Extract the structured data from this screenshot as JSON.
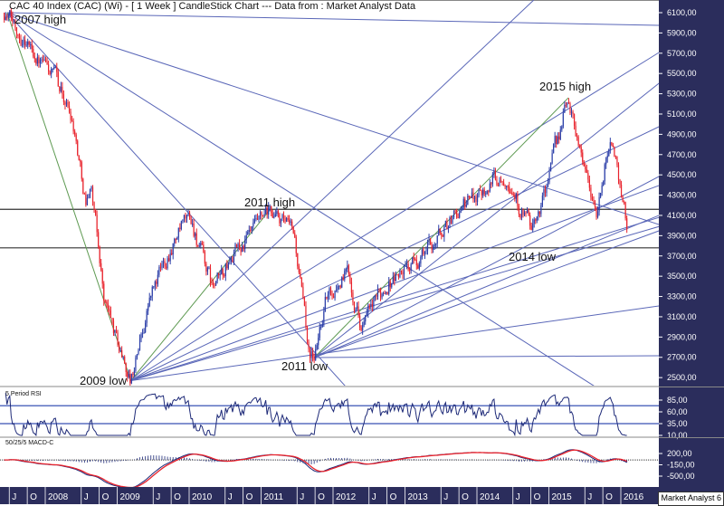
{
  "header": {
    "title": "CAC 40 Index (CAC) (Wi) - [ 1 Week ] CandleStick Chart --- Data from : Market Analyst Data"
  },
  "brand": "Market Analyst 6",
  "colors": {
    "up": "#2b3ea8",
    "down": "#e8222b",
    "fan": "#5a67b8",
    "fan_green": "#5e9a52",
    "axis_bg": "#2b2d5c",
    "hline": "#333333",
    "macd_signal": "#e8222b",
    "macd_line": "#1e2a78"
  },
  "annotations": [
    {
      "text": "2007 high"
    },
    {
      "text": "2009 low"
    },
    {
      "text": "2011 high"
    },
    {
      "text": "2011 low"
    },
    {
      "text": "2015 high"
    },
    {
      "text": "2014 low"
    }
  ],
  "chart_data": [
    {
      "type": "candlestick",
      "title": "CAC 40 Index (CAC) (Wi) - [ 1 Week ] CandleStick Chart",
      "ylim": [
        2500,
        6200
      ],
      "xlim": [
        2007.36,
        2016.53
      ],
      "yticks": [
        6100,
        5900,
        5700,
        5500,
        5300,
        5100,
        4900,
        4700,
        4500,
        4300,
        4100,
        3900,
        3700,
        3500,
        3300,
        3100,
        2900,
        2700,
        2500
      ],
      "ytick_labels": [
        "6100,00",
        "5900,00",
        "5700,00",
        "5500,00",
        "5300,00",
        "5100,00",
        "4900,00",
        "4700,00",
        "4500,00",
        "4300,00",
        "4100,00",
        "3900,00",
        "3700,00",
        "3500,00",
        "3300,00",
        "3100,00",
        "2900,00",
        "2700,00",
        "2500,00"
      ],
      "price_path": [
        [
          2007.43,
          6100
        ],
        [
          2007.75,
          5820
        ],
        [
          2007.94,
          5600
        ],
        [
          2008.13,
          5470
        ],
        [
          2008.38,
          5065
        ],
        [
          2008.57,
          4215
        ],
        [
          2008.63,
          4440
        ],
        [
          2008.82,
          3280
        ],
        [
          2009.01,
          2830
        ],
        [
          2009.19,
          2470
        ],
        [
          2009.45,
          3280
        ],
        [
          2009.76,
          3815
        ],
        [
          2010.01,
          4080
        ],
        [
          2010.33,
          3370
        ],
        [
          2010.64,
          3725
        ],
        [
          2011.14,
          4130
        ],
        [
          2011.46,
          3900
        ],
        [
          2011.65,
          2830
        ],
        [
          2011.74,
          2700
        ],
        [
          2011.9,
          3280
        ],
        [
          2012.21,
          3545
        ],
        [
          2012.4,
          3010
        ],
        [
          2012.78,
          3460
        ],
        [
          2013.16,
          3640
        ],
        [
          2013.66,
          4080
        ],
        [
          2014.16,
          4440
        ],
        [
          2014.42,
          4530
        ],
        [
          2014.6,
          4170
        ],
        [
          2014.79,
          3950
        ],
        [
          2014.98,
          4440
        ],
        [
          2015.27,
          5260
        ],
        [
          2015.55,
          4440
        ],
        [
          2015.67,
          4080
        ],
        [
          2015.86,
          4930
        ],
        [
          2016.05,
          4170
        ],
        [
          2016.1,
          3885
        ]
      ],
      "horizontal_lines": [
        4160,
        3780
      ],
      "fan_lines": [
        {
          "from": [
            2007.47,
            6100
          ],
          "to": [
            2016.53,
            5975
          ],
          "color": "fan"
        },
        {
          "from": [
            2007.47,
            6100
          ],
          "to": [
            2016.53,
            4010
          ],
          "color": "fan"
        },
        {
          "from": [
            2007.47,
            6100
          ],
          "to": [
            2015.7,
            2385
          ],
          "color": "fan"
        },
        {
          "from": [
            2007.47,
            6100
          ],
          "to": [
            2012.21,
            2385
          ],
          "color": "fan"
        },
        {
          "from": [
            2007.47,
            6100
          ],
          "to": [
            2009.19,
            2470
          ],
          "color": "fan_green"
        },
        {
          "from": [
            2009.19,
            2470
          ],
          "to": [
            2011.12,
            4153
          ],
          "color": "fan_green"
        },
        {
          "from": [
            2009.19,
            2470
          ],
          "to": [
            2014.79,
            6225
          ],
          "color": "fan"
        },
        {
          "from": [
            2009.19,
            2470
          ],
          "to": [
            2016.53,
            5707
          ],
          "color": "fan"
        },
        {
          "from": [
            2009.19,
            2470
          ],
          "to": [
            2016.53,
            4975
          ],
          "color": "fan"
        },
        {
          "from": [
            2009.19,
            2470
          ],
          "to": [
            2016.53,
            4395
          ],
          "color": "fan"
        },
        {
          "from": [
            2009.19,
            2470
          ],
          "to": [
            2016.53,
            4080
          ],
          "color": "fan"
        },
        {
          "from": [
            2009.19,
            2470
          ],
          "to": [
            2016.53,
            3990
          ],
          "color": "fan"
        },
        {
          "from": [
            2009.19,
            2470
          ],
          "to": [
            2016.53,
            3207
          ],
          "color": "fan"
        },
        {
          "from": [
            2011.74,
            2698
          ],
          "to": [
            2015.27,
            5260
          ],
          "color": "fan_green"
        },
        {
          "from": [
            2011.74,
            2698
          ],
          "to": [
            2016.53,
            5403
          ],
          "color": "fan"
        },
        {
          "from": [
            2011.74,
            2698
          ],
          "to": [
            2016.53,
            4484
          ],
          "color": "fan"
        },
        {
          "from": [
            2011.74,
            2698
          ],
          "to": [
            2016.53,
            4100
          ],
          "color": "fan"
        },
        {
          "from": [
            2011.74,
            2698
          ],
          "to": [
            2016.53,
            3948
          ],
          "color": "fan"
        },
        {
          "from": [
            2011.74,
            2698
          ],
          "to": [
            2016.53,
            2716
          ],
          "color": "fan"
        }
      ]
    },
    {
      "type": "line",
      "title": "5 Period RSI",
      "period": 5,
      "ylim": [
        5,
        95
      ],
      "yticks": [
        85,
        60,
        35,
        10
      ],
      "ytick_labels": [
        "85,00",
        "60,00",
        "35,00",
        "10,00"
      ],
      "bands": [
        73,
        35
      ]
    },
    {
      "type": "line",
      "title": "50/25/5 MACD-C",
      "ylim": [
        -620,
        420
      ],
      "yticks": [
        200,
        -150,
        -500
      ],
      "ytick_labels": [
        "200,00",
        "-150,00",
        "-500,00"
      ]
    }
  ],
  "time_axis": [
    {
      "label": "J",
      "year": 2007.5
    },
    {
      "label": "O",
      "year": 2007.75
    },
    {
      "label": "2008",
      "year": 2008
    },
    {
      "label": "J",
      "year": 2008.5
    },
    {
      "label": "O",
      "year": 2008.75
    },
    {
      "label": "2009",
      "year": 2009
    },
    {
      "label": "J",
      "year": 2009.5
    },
    {
      "label": "O",
      "year": 2009.75
    },
    {
      "label": "2010",
      "year": 2010
    },
    {
      "label": "J",
      "year": 2010.5
    },
    {
      "label": "O",
      "year": 2010.75
    },
    {
      "label": "2011",
      "year": 2011
    },
    {
      "label": "J",
      "year": 2011.5
    },
    {
      "label": "O",
      "year": 2011.75
    },
    {
      "label": "2012",
      "year": 2012
    },
    {
      "label": "J",
      "year": 2012.5
    },
    {
      "label": "O",
      "year": 2012.75
    },
    {
      "label": "2013",
      "year": 2013
    },
    {
      "label": "J",
      "year": 2013.5
    },
    {
      "label": "O",
      "year": 2013.75
    },
    {
      "label": "2014",
      "year": 2014
    },
    {
      "label": "J",
      "year": 2014.5
    },
    {
      "label": "O",
      "year": 2014.75
    },
    {
      "label": "2015",
      "year": 2015
    },
    {
      "label": "J",
      "year": 2015.5
    },
    {
      "label": "O",
      "year": 2015.75
    },
    {
      "label": "2016",
      "year": 2016
    }
  ]
}
